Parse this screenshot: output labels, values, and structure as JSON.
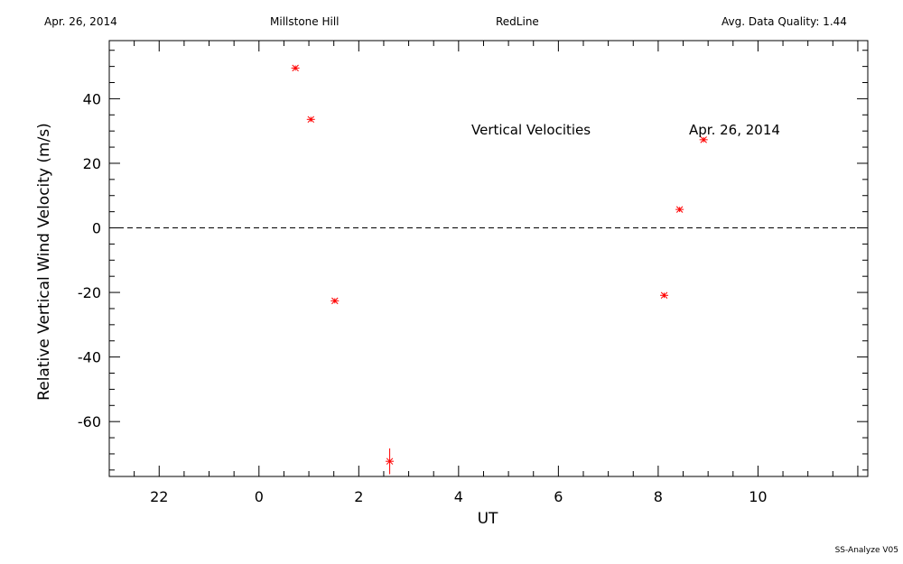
{
  "header": {
    "date": "Apr. 26, 2014",
    "site": "Millstone Hill",
    "instrument": "RedLine",
    "quality": "Avg. Data Quality: 1.44"
  },
  "footer": {
    "version": "SS-Analyze V05"
  },
  "colors": {
    "marker": "#ff0000",
    "axis": "#000000"
  },
  "chart_data": {
    "type": "scatter",
    "title": "Vertical Velocities",
    "date_label": "Apr. 26, 2014",
    "xlabel": "UT",
    "ylabel": "Relative Vertical Wind Velocity (m/s)",
    "xlim": [
      -3,
      12.2
    ],
    "ylim": [
      -77,
      58
    ],
    "x_ticks": [
      22,
      0,
      2,
      4,
      6,
      8,
      10
    ],
    "x_tick_positions": [
      -2,
      0,
      2,
      4,
      6,
      8,
      10
    ],
    "y_ticks": [
      40,
      20,
      0,
      -20,
      -40,
      -60
    ],
    "zero_line": "dashed",
    "grid": false,
    "series": [
      {
        "name": "",
        "marker": "asterisk",
        "points": [
          {
            "x": 0.73,
            "y": 49.5,
            "err": 0.8
          },
          {
            "x": 1.04,
            "y": 33.6,
            "err": 0.8
          },
          {
            "x": 1.52,
            "y": -22.6,
            "err": 0.8
          },
          {
            "x": 2.62,
            "y": -72.3,
            "err": 4.0
          },
          {
            "x": 8.12,
            "y": -20.9,
            "err": 0.8
          },
          {
            "x": 8.43,
            "y": 5.7,
            "err": 0.8
          },
          {
            "x": 8.91,
            "y": 27.3,
            "err": 0.8
          }
        ]
      }
    ]
  }
}
